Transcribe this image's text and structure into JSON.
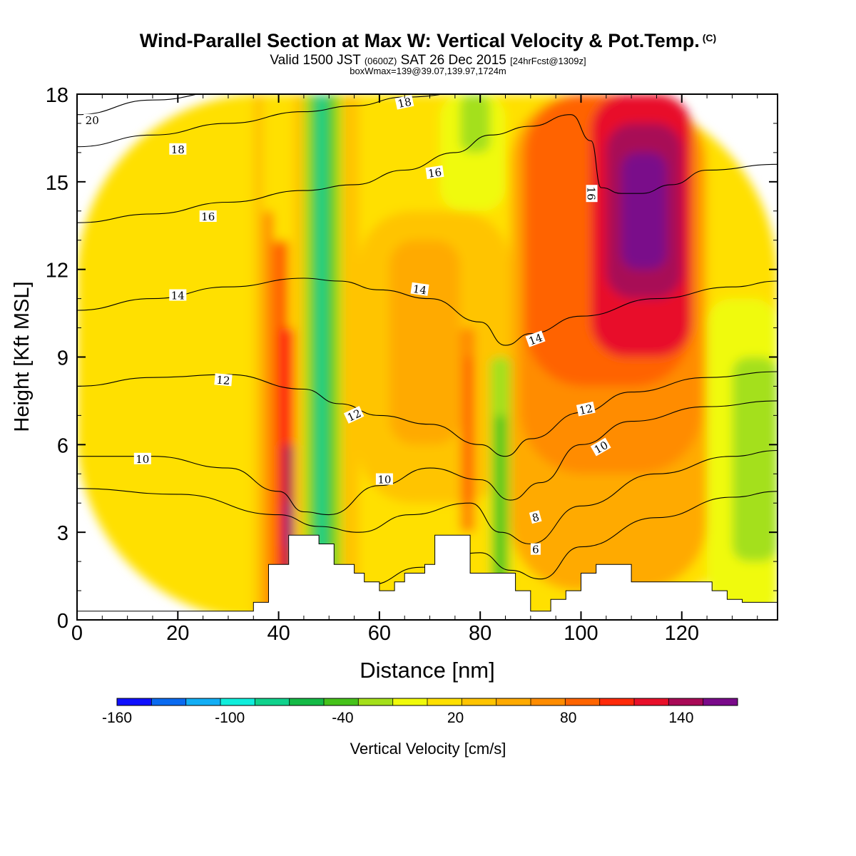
{
  "header": {
    "title": "Wind-Parallel Section at Max W: Vertical Velocity & Pot.Temp.",
    "copyright": "(C)",
    "valid_a": "Valid 1500 JST ",
    "valid_b": "(0600Z)",
    "valid_c": " SAT 26 Dec 2015 ",
    "valid_d": "[24hrFcst@1309z]",
    "box_info": "boxWmax=139@39.07,139.97,1724m"
  },
  "chart_data": {
    "type": "heatmap",
    "xlabel": "Distance [nm]",
    "ylabel": "Height [Kft MSL]",
    "xlim": [
      0,
      139
    ],
    "ylim": [
      0,
      18
    ],
    "x_ticks": [
      "0",
      "20",
      "40",
      "60",
      "80",
      "100",
      "120"
    ],
    "x_tick_values": [
      0,
      20,
      40,
      60,
      80,
      100,
      120
    ],
    "y_ticks": [
      "0",
      "3",
      "6",
      "9",
      "12",
      "15",
      "18"
    ],
    "y_tick_values": [
      0,
      3,
      6,
      9,
      12,
      15,
      18
    ],
    "colorbar": {
      "label": "Vertical Velocity [cm/s]",
      "range": [
        -160,
        170
      ],
      "tick_labels": [
        "-160",
        "-100",
        "-40",
        "20",
        "80",
        "140"
      ],
      "tick_values": [
        -160,
        -100,
        -40,
        20,
        80,
        140
      ],
      "colors": [
        "#1010ff",
        "#0a6af0",
        "#12aef5",
        "#10eedc",
        "#10d28c",
        "#14ba46",
        "#46c21a",
        "#a4e01a",
        "#f0fa0a",
        "#ffe000",
        "#ffc400",
        "#ffaa00",
        "#ff8c00",
        "#ff6400",
        "#ff2a0a",
        "#e8102a",
        "#a80a56",
        "#7a0a8a"
      ]
    },
    "velocity_cells": [
      {
        "x": [
          0,
          139
        ],
        "z": [
          0,
          18
        ],
        "w": 10
      },
      {
        "x": [
          35,
          37
        ],
        "z": [
          0,
          18
        ],
        "w": 30
      },
      {
        "x": [
          37,
          39
        ],
        "z": [
          0,
          14
        ],
        "w": 60
      },
      {
        "x": [
          39,
          42
        ],
        "z": [
          0,
          13
        ],
        "w": 90
      },
      {
        "x": [
          40,
          43
        ],
        "z": [
          0,
          10
        ],
        "w": 110
      },
      {
        "x": [
          41,
          43
        ],
        "z": [
          1,
          6
        ],
        "w": 135
      },
      {
        "x": [
          41.5,
          42.5
        ],
        "z": [
          2.5,
          4
        ],
        "w": 165
      },
      {
        "x": [
          43,
          45
        ],
        "z": [
          0,
          18
        ],
        "w": 40
      },
      {
        "x": [
          45,
          46.5
        ],
        "z": [
          0,
          18
        ],
        "w": -20
      },
      {
        "x": [
          46.5,
          47.5
        ],
        "z": [
          0,
          18
        ],
        "w": -50
      },
      {
        "x": [
          47.5,
          49.5
        ],
        "z": [
          0,
          18
        ],
        "w": -75
      },
      {
        "x": [
          49.5,
          51
        ],
        "z": [
          0,
          18
        ],
        "w": -45
      },
      {
        "x": [
          51,
          52.5
        ],
        "z": [
          0,
          18
        ],
        "w": -15
      },
      {
        "x": [
          52.5,
          56
        ],
        "z": [
          0,
          18
        ],
        "w": 30
      },
      {
        "x": [
          56,
          86
        ],
        "z": [
          4,
          14
        ],
        "w": 30
      },
      {
        "x": [
          62,
          76
        ],
        "z": [
          6,
          13
        ],
        "w": 45
      },
      {
        "x": [
          76,
          79
        ],
        "z": [
          3,
          10
        ],
        "w": 70
      },
      {
        "x": [
          77,
          78.5
        ],
        "z": [
          4,
          9
        ],
        "w": 95
      },
      {
        "x": [
          82,
          86
        ],
        "z": [
          0,
          9
        ],
        "w": -25
      },
      {
        "x": [
          83,
          85
        ],
        "z": [
          1,
          7
        ],
        "w": -50
      },
      {
        "x": [
          72,
          85
        ],
        "z": [
          14,
          18
        ],
        "w": -10
      },
      {
        "x": [
          76,
          82
        ],
        "z": [
          16,
          18
        ],
        "w": -30
      },
      {
        "x": [
          86,
          125
        ],
        "z": [
          1,
          18
        ],
        "w": 45
      },
      {
        "x": [
          88,
          124
        ],
        "z": [
          5,
          18
        ],
        "w": 65
      },
      {
        "x": [
          89,
          122
        ],
        "z": [
          8,
          18
        ],
        "w": 95
      },
      {
        "x": [
          102,
          122
        ],
        "z": [
          9,
          18
        ],
        "w": 115
      },
      {
        "x": [
          105,
          120
        ],
        "z": [
          11,
          17
        ],
        "w": 135
      },
      {
        "x": [
          108,
          117
        ],
        "z": [
          12,
          16
        ],
        "w": 155
      },
      {
        "x": [
          125,
          139
        ],
        "z": [
          0,
          11
        ],
        "w": -10
      },
      {
        "x": [
          130,
          139
        ],
        "z": [
          2,
          9
        ],
        "w": -15
      }
    ],
    "theta_contours": [
      {
        "label": "20",
        "x": [
          0,
          15,
          30,
          45,
          60,
          75,
          90,
          110,
          139
        ],
        "z": [
          17.3,
          17.8,
          18.1,
          18.3,
          18.5,
          18.6,
          18.6,
          18.6,
          18.6
        ]
      },
      {
        "label": "18",
        "x": [
          0,
          15,
          30,
          45,
          55,
          65,
          80,
          95,
          139
        ],
        "z": [
          16.2,
          16.6,
          17.0,
          17.4,
          17.6,
          17.9,
          18.1,
          18.3,
          18.5
        ]
      },
      {
        "label": "16",
        "x": [
          0,
          15,
          30,
          45,
          55,
          65,
          75,
          82,
          90,
          98,
          102,
          104,
          108,
          112,
          118,
          125,
          139
        ],
        "z": [
          13.6,
          13.9,
          14.3,
          14.7,
          14.9,
          15.4,
          16.0,
          16.6,
          16.9,
          17.3,
          16.4,
          14.8,
          14.6,
          14.6,
          14.9,
          15.4,
          15.6
        ]
      },
      {
        "label": "14",
        "x": [
          0,
          15,
          30,
          45,
          52,
          60,
          70,
          80,
          85,
          90,
          100,
          115,
          130,
          139
        ],
        "z": [
          10.6,
          11.0,
          11.4,
          11.7,
          11.6,
          11.3,
          11.0,
          10.2,
          9.4,
          9.8,
          10.4,
          11.0,
          11.4,
          11.6
        ]
      },
      {
        "label": "12",
        "x": [
          0,
          15,
          30,
          45,
          52,
          60,
          70,
          80,
          85,
          90,
          100,
          110,
          125,
          139
        ],
        "z": [
          8.0,
          8.3,
          8.4,
          7.9,
          7.4,
          7.0,
          6.7,
          6.0,
          5.6,
          6.2,
          7.1,
          7.8,
          8.3,
          8.5
        ]
      },
      {
        "label": "10",
        "x": [
          0,
          15,
          30,
          40,
          45,
          50,
          60,
          70,
          80,
          86,
          92,
          100,
          110,
          125,
          139
        ],
        "z": [
          5.6,
          5.6,
          5.2,
          4.4,
          3.7,
          3.6,
          4.6,
          5.2,
          4.8,
          4.1,
          4.7,
          6.0,
          6.8,
          7.3,
          7.5
        ]
      },
      {
        "label": "8",
        "x": [
          0,
          20,
          40,
          48,
          56,
          66,
          78,
          84,
          90,
          100,
          115,
          130,
          139
        ],
        "z": [
          4.5,
          4.3,
          3.6,
          3.2,
          3.0,
          3.6,
          4.0,
          3.0,
          2.6,
          3.9,
          5.0,
          5.6,
          5.8
        ]
      },
      {
        "label": "6",
        "x": [
          58,
          68,
          80,
          86,
          92,
          100,
          115,
          130,
          139
        ],
        "z": [
          1.2,
          1.8,
          2.3,
          1.7,
          1.4,
          2.5,
          3.5,
          4.2,
          4.4
        ]
      }
    ],
    "theta_labels": [
      {
        "text": "20",
        "x": 3,
        "z": 17.1,
        "angle": 0
      },
      {
        "text": "18",
        "x": 20,
        "z": 16.1,
        "angle": 0
      },
      {
        "text": "18",
        "x": 65,
        "z": 17.7,
        "angle": -12
      },
      {
        "text": "16",
        "x": 26,
        "z": 13.8,
        "angle": 0
      },
      {
        "text": "16",
        "x": 71,
        "z": 15.3,
        "angle": -8
      },
      {
        "text": "16",
        "x": 102,
        "z": 14.6,
        "angle": 90
      },
      {
        "text": "14",
        "x": 20,
        "z": 11.1,
        "angle": 0
      },
      {
        "text": "14",
        "x": 68,
        "z": 11.3,
        "angle": 8
      },
      {
        "text": "14",
        "x": 91,
        "z": 9.6,
        "angle": -20
      },
      {
        "text": "12",
        "x": 29,
        "z": 8.2,
        "angle": 5
      },
      {
        "text": "12",
        "x": 55,
        "z": 7.0,
        "angle": -25
      },
      {
        "text": "12",
        "x": 101,
        "z": 7.2,
        "angle": -12
      },
      {
        "text": "10",
        "x": 13,
        "z": 5.5,
        "angle": 0
      },
      {
        "text": "10",
        "x": 61,
        "z": 4.8,
        "angle": 0
      },
      {
        "text": "10",
        "x": 104,
        "z": 5.9,
        "angle": -30
      },
      {
        "text": "8",
        "x": 91,
        "z": 3.5,
        "angle": -15
      },
      {
        "text": "6",
        "x": 91,
        "z": 2.4,
        "angle": 0
      }
    ],
    "terrain": {
      "x": [
        0,
        35,
        35,
        38,
        38,
        42,
        42,
        48,
        48,
        51,
        51,
        55,
        55,
        57,
        57,
        60,
        60,
        63,
        63,
        65,
        65,
        69,
        69,
        71,
        71,
        75,
        75,
        78,
        78,
        87,
        87,
        90,
        90,
        94,
        94,
        97,
        97,
        100,
        100,
        103,
        103,
        110,
        110,
        126,
        126,
        129,
        129,
        132,
        132,
        139
      ],
      "z": [
        0.3,
        0.3,
        0.6,
        0.6,
        1.9,
        1.9,
        2.9,
        2.9,
        2.6,
        2.6,
        1.9,
        1.9,
        1.6,
        1.6,
        1.3,
        1.3,
        1.0,
        1.0,
        1.3,
        1.3,
        1.6,
        1.6,
        1.9,
        1.9,
        2.9,
        2.9,
        2.9,
        2.9,
        1.6,
        1.6,
        1.0,
        1.0,
        0.3,
        0.3,
        0.7,
        0.7,
        1.0,
        1.0,
        1.6,
        1.6,
        1.9,
        1.9,
        1.3,
        1.3,
        1.0,
        1.0,
        0.7,
        0.7,
        0.6,
        0.6
      ]
    }
  }
}
